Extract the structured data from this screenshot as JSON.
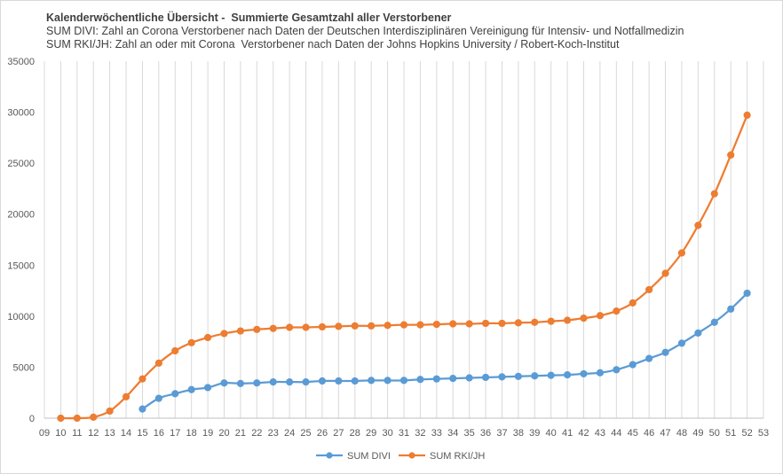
{
  "chart_data": {
    "type": "line",
    "title": "Kalenderwöchentliche Übersicht -  Summierte Gesamtzahl aller Verstorbener",
    "subtitle_lines": [
      "SUM DIVI: Zahl an Corona Verstorbener nach Daten der Deutschen Interdisziplinären Vereinigung für Intensiv- und Notfallmedizin",
      "SUM RKI/JH: Zahl an oder mit Corona  Verstorbener nach Daten der Johns Hopkins University / Robert-Koch-Institut"
    ],
    "xlabel": "",
    "ylabel": "",
    "categories": [
      "09",
      "10",
      "11",
      "12",
      "13",
      "14",
      "15",
      "16",
      "17",
      "18",
      "19",
      "20",
      "21",
      "22",
      "23",
      "24",
      "25",
      "26",
      "27",
      "28",
      "29",
      "30",
      "31",
      "32",
      "33",
      "34",
      "35",
      "36",
      "37",
      "38",
      "39",
      "40",
      "41",
      "42",
      "43",
      "44",
      "45",
      "46",
      "47",
      "48",
      "49",
      "50",
      "51",
      "52",
      "53"
    ],
    "ylim": [
      0,
      35000
    ],
    "yticks": [
      "0",
      "5000",
      "10000",
      "15000",
      "20000",
      "25000",
      "30000",
      "35000"
    ],
    "grid": "vertical",
    "legend_position": "bottom",
    "series": [
      {
        "name": "SUM DIVI",
        "color": "#5b9bd5",
        "values": [
          null,
          null,
          null,
          null,
          null,
          null,
          900,
          1950,
          2400,
          2800,
          3000,
          3450,
          3400,
          3450,
          3550,
          3550,
          3550,
          3650,
          3650,
          3650,
          3700,
          3700,
          3700,
          3800,
          3850,
          3900,
          3950,
          4000,
          4050,
          4100,
          4150,
          4200,
          4250,
          4350,
          4450,
          4750,
          5250,
          5850,
          6450,
          7350,
          8350,
          9400,
          10700,
          12250,
          null
        ]
      },
      {
        "name": "SUM RKI/JH",
        "color": "#ed7d31",
        "values": [
          null,
          0,
          0,
          100,
          700,
          2100,
          3850,
          5400,
          6600,
          7400,
          7900,
          8300,
          8550,
          8700,
          8800,
          8900,
          8900,
          8950,
          9000,
          9050,
          9050,
          9100,
          9150,
          9150,
          9200,
          9250,
          9250,
          9300,
          9300,
          9350,
          9400,
          9500,
          9600,
          9800,
          10050,
          10500,
          11300,
          12600,
          14200,
          16200,
          18900,
          22000,
          25800,
          29700,
          null
        ]
      }
    ]
  }
}
